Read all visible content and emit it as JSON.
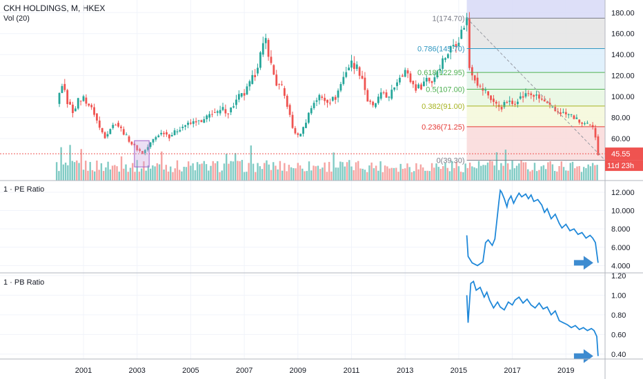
{
  "header": {
    "symbol": "CKH HOLDINGS, M, HKEX",
    "volume_label": "Vol (20)",
    "pe_label": "1 · PE Ratio",
    "pb_label": "1 · PB Ratio"
  },
  "colors": {
    "up": "#26a69a",
    "down": "#ef5350",
    "vol_up": "#80cbc4",
    "vol_down": "#f5a3a1",
    "ratio_line": "#1f88d9",
    "arrow": "#3d8bd0",
    "price_tag": "#ef5350",
    "grid": "#f0f3fa"
  },
  "chart_data": [
    {
      "type": "candlestick",
      "panel": "price",
      "x_ticks": [
        "2001",
        "2003",
        "2005",
        "2007",
        "2009",
        "2011",
        "2013",
        "2015",
        "2017",
        "2019"
      ],
      "x_tick_years": [
        2001,
        2003,
        2005,
        2007,
        2009,
        2011,
        2013,
        2015,
        2017,
        2019
      ],
      "y_ticks": [
        "60.00",
        "80.00",
        "100.00",
        "120.00",
        "140.00",
        "160.00",
        "180.00"
      ],
      "y_tick_values": [
        60,
        80,
        100,
        120,
        140,
        160,
        180
      ],
      "ylim": [
        20,
        192
      ],
      "last_price": "45.55",
      "countdown": "11d 23h",
      "close_series": [
        [
          2000.0,
          93
        ],
        [
          2000.2,
          112
        ],
        [
          2000.4,
          95
        ],
        [
          2000.6,
          86
        ],
        [
          2000.8,
          96
        ],
        [
          2001.0,
          99
        ],
        [
          2001.2,
          92
        ],
        [
          2001.4,
          84
        ],
        [
          2001.6,
          70
        ],
        [
          2001.8,
          62
        ],
        [
          2002.0,
          70
        ],
        [
          2002.2,
          75
        ],
        [
          2002.4,
          69
        ],
        [
          2002.6,
          62
        ],
        [
          2002.8,
          55
        ],
        [
          2003.0,
          50
        ],
        [
          2003.2,
          46
        ],
        [
          2003.4,
          52
        ],
        [
          2003.6,
          59
        ],
        [
          2003.8,
          64
        ],
        [
          2004.0,
          66
        ],
        [
          2004.2,
          62
        ],
        [
          2004.4,
          66
        ],
        [
          2004.6,
          70
        ],
        [
          2004.8,
          73
        ],
        [
          2005.0,
          74
        ],
        [
          2005.2,
          77
        ],
        [
          2005.4,
          75
        ],
        [
          2005.6,
          80
        ],
        [
          2005.8,
          85
        ],
        [
          2006.0,
          84
        ],
        [
          2006.2,
          88
        ],
        [
          2006.4,
          85
        ],
        [
          2006.6,
          92
        ],
        [
          2006.8,
          100
        ],
        [
          2007.0,
          102
        ],
        [
          2007.2,
          112
        ],
        [
          2007.4,
          122
        ],
        [
          2007.6,
          140
        ],
        [
          2007.8,
          154
        ],
        [
          2008.0,
          130
        ],
        [
          2008.2,
          112
        ],
        [
          2008.4,
          108
        ],
        [
          2008.6,
          92
        ],
        [
          2008.8,
          70
        ],
        [
          2009.0,
          62
        ],
        [
          2009.2,
          70
        ],
        [
          2009.4,
          84
        ],
        [
          2009.6,
          95
        ],
        [
          2009.8,
          100
        ],
        [
          2010.0,
          97
        ],
        [
          2010.2,
          96
        ],
        [
          2010.4,
          99
        ],
        [
          2010.6,
          112
        ],
        [
          2010.8,
          125
        ],
        [
          2011.0,
          132
        ],
        [
          2011.2,
          128
        ],
        [
          2011.4,
          118
        ],
        [
          2011.6,
          96
        ],
        [
          2011.8,
          90
        ],
        [
          2012.0,
          98
        ],
        [
          2012.2,
          104
        ],
        [
          2012.4,
          98
        ],
        [
          2012.6,
          110
        ],
        [
          2012.8,
          120
        ],
        [
          2013.0,
          125
        ],
        [
          2013.2,
          115
        ],
        [
          2013.4,
          108
        ],
        [
          2013.6,
          110
        ],
        [
          2013.8,
          118
        ],
        [
          2014.0,
          114
        ],
        [
          2014.2,
          125
        ],
        [
          2014.4,
          135
        ],
        [
          2014.6,
          142
        ],
        [
          2014.8,
          150
        ],
        [
          2015.0,
          155
        ],
        [
          2015.2,
          168
        ],
        [
          2015.3,
          174
        ],
        [
          2015.4,
          128
        ],
        [
          2015.6,
          118
        ],
        [
          2015.8,
          108
        ],
        [
          2016.0,
          105
        ],
        [
          2016.2,
          98
        ],
        [
          2016.4,
          92
        ],
        [
          2016.6,
          90
        ],
        [
          2016.8,
          95
        ],
        [
          2017.0,
          93
        ],
        [
          2017.2,
          98
        ],
        [
          2017.4,
          100
        ],
        [
          2017.6,
          103
        ],
        [
          2017.8,
          101
        ],
        [
          2018.0,
          98
        ],
        [
          2018.2,
          95
        ],
        [
          2018.4,
          90
        ],
        [
          2018.6,
          86
        ],
        [
          2018.8,
          85
        ],
        [
          2019.0,
          83
        ],
        [
          2019.2,
          82
        ],
        [
          2019.4,
          78
        ],
        [
          2019.6,
          74
        ],
        [
          2019.8,
          73
        ],
        [
          2020.0,
          70
        ],
        [
          2020.1,
          62
        ],
        [
          2020.2,
          45.55
        ]
      ],
      "fibonacci": [
        {
          "label": "1(174.70)",
          "value": 174.7,
          "color": "#787b86"
        },
        {
          "label": "0.786(145.70)",
          "value": 145.7,
          "color": "#2f97c1"
        },
        {
          "label": "0.618(122.95)",
          "value": 122.95,
          "color": "#4caf50"
        },
        {
          "label": "0.5(107.00)",
          "value": 107.0,
          "color": "#4caf50"
        },
        {
          "label": "0.382(91.00)",
          "value": 91.0,
          "color": "#a5b21e"
        },
        {
          "label": "0.236(71.25)",
          "value": 71.25,
          "color": "#e53935"
        },
        {
          "label": "0(39.30)",
          "value": 39.3,
          "color": "#787b86"
        }
      ],
      "fib_zone_top": 192
    },
    {
      "type": "line",
      "panel": "pe",
      "title": "1 · PE Ratio",
      "y_ticks": [
        "4.000",
        "6.000",
        "8.000",
        "10.000",
        "12.000"
      ],
      "y_tick_values": [
        4,
        6,
        8,
        10,
        12
      ],
      "ylim": [
        3.2,
        13.2
      ],
      "x": [
        2015.3,
        2015.35,
        2015.5,
        2015.7,
        2015.9,
        2016.0,
        2016.1,
        2016.25,
        2016.35,
        2016.5,
        2016.55,
        2016.6,
        2016.7,
        2016.8,
        2016.85,
        2016.95,
        2017.05,
        2017.15,
        2017.25,
        2017.35,
        2017.5,
        2017.6,
        2017.7,
        2017.8,
        2017.95,
        2018.1,
        2018.2,
        2018.3,
        2018.45,
        2018.6,
        2018.75,
        2018.85,
        2019.0,
        2019.15,
        2019.3,
        2019.45,
        2019.6,
        2019.75,
        2019.9,
        2020.0,
        2020.1,
        2020.2
      ],
      "values": [
        7.3,
        5.0,
        4.3,
        4.0,
        4.4,
        6.5,
        6.8,
        6.2,
        6.9,
        11.0,
        12.2,
        12.0,
        11.3,
        10.4,
        11.1,
        11.6,
        10.8,
        11.4,
        11.9,
        11.5,
        11.8,
        11.3,
        11.7,
        11.0,
        11.2,
        10.6,
        9.8,
        10.2,
        9.1,
        9.6,
        8.6,
        8.1,
        8.5,
        7.8,
        8.0,
        7.4,
        7.6,
        7.0,
        7.3,
        7.0,
        6.5,
        4.3
      ]
    },
    {
      "type": "line",
      "panel": "pb",
      "title": "1 · PB Ratio",
      "y_ticks": [
        "0.40",
        "0.60",
        "0.80",
        "1.00",
        "1.20"
      ],
      "y_tick_values": [
        0.4,
        0.6,
        0.8,
        1.0,
        1.2
      ],
      "ylim": [
        0.35,
        1.22
      ],
      "x": [
        2015.3,
        2015.35,
        2015.45,
        2015.55,
        2015.65,
        2015.8,
        2015.95,
        2016.05,
        2016.15,
        2016.3,
        2016.45,
        2016.55,
        2016.7,
        2016.85,
        2017.0,
        2017.1,
        2017.25,
        2017.4,
        2017.55,
        2017.7,
        2017.85,
        2018.0,
        2018.15,
        2018.3,
        2018.45,
        2018.6,
        2018.75,
        2018.9,
        2019.05,
        2019.2,
        2019.35,
        2019.5,
        2019.65,
        2019.8,
        2019.95,
        2020.05,
        2020.15,
        2020.2
      ],
      "values": [
        1.0,
        0.72,
        1.12,
        1.14,
        1.05,
        1.08,
        0.98,
        1.03,
        0.95,
        0.87,
        0.93,
        0.88,
        0.85,
        0.93,
        0.9,
        0.95,
        0.98,
        0.92,
        0.96,
        0.9,
        0.87,
        0.92,
        0.86,
        0.88,
        0.8,
        0.84,
        0.74,
        0.72,
        0.7,
        0.67,
        0.69,
        0.65,
        0.67,
        0.64,
        0.66,
        0.64,
        0.58,
        0.38
      ]
    }
  ]
}
